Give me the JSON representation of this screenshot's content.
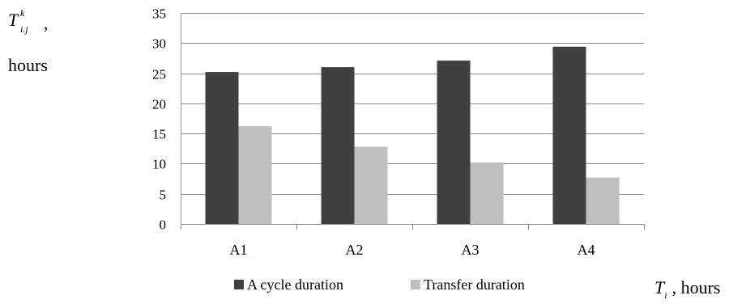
{
  "chart_data": {
    "type": "bar",
    "categories": [
      "A1",
      "A2",
      "A3",
      "A4"
    ],
    "series": [
      {
        "name": "A cycle duration",
        "color": "#404040",
        "values": [
          25.2,
          26.0,
          27.1,
          29.4
        ]
      },
      {
        "name": "Transfer duration",
        "color": "#bfbfbf",
        "values": [
          16.2,
          12.8,
          10.2,
          7.7
        ]
      }
    ],
    "ylim": [
      0,
      35
    ],
    "yticks": [
      0,
      5,
      10,
      15,
      20,
      25,
      30,
      35
    ],
    "grid": true,
    "legend": "bottom",
    "ylabel": {
      "symbol": "T",
      "superscript": "k",
      "subscript": "i.j",
      "suffix": ",",
      "unit": "hours"
    },
    "xlabel": {
      "symbol": "T",
      "subscript": "i",
      "unit": ", hours"
    }
  }
}
